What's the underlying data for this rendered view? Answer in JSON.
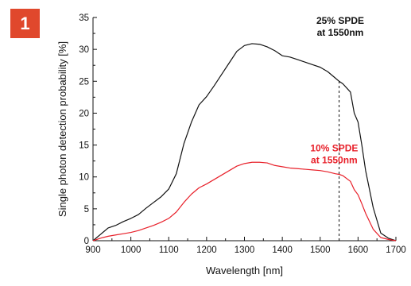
{
  "figure": {
    "badge": "1"
  },
  "chart_data": {
    "type": "line",
    "title": "",
    "xlabel": "Wavelength [nm]",
    "ylabel": "Single photon detection probability [%]",
    "xlim": [
      900,
      1700
    ],
    "ylim": [
      0,
      35
    ],
    "xticks": [
      900,
      1000,
      1100,
      1200,
      1300,
      1400,
      1500,
      1600,
      1700
    ],
    "yticks": [
      0,
      5,
      10,
      15,
      20,
      25,
      30,
      35
    ],
    "grid": false,
    "series": [
      {
        "color": "#111111",
        "x": [
          900,
          920,
          940,
          960,
          980,
          1000,
          1020,
          1040,
          1060,
          1080,
          1100,
          1120,
          1140,
          1160,
          1180,
          1200,
          1220,
          1240,
          1260,
          1280,
          1300,
          1320,
          1340,
          1360,
          1380,
          1400,
          1420,
          1440,
          1460,
          1480,
          1500,
          1520,
          1540,
          1550,
          1560,
          1580,
          1590,
          1600,
          1610,
          1620,
          1640,
          1660,
          1680,
          1700
        ],
        "y": [
          0,
          1.0,
          2.0,
          2.4,
          3.0,
          3.5,
          4.1,
          5.1,
          6.0,
          6.9,
          8.1,
          10.5,
          15.2,
          18.6,
          21.3,
          22.6,
          24.3,
          26.1,
          27.9,
          29.7,
          30.6,
          30.9,
          30.8,
          30.4,
          29.8,
          29.0,
          28.8,
          28.4,
          28.0,
          27.6,
          27.2,
          26.5,
          25.5,
          25.0,
          24.6,
          23.3,
          20.0,
          18.6,
          15.0,
          11.0,
          5.2,
          1.2,
          0.4,
          0
        ]
      },
      {
        "color": "#e8202a",
        "x": [
          900,
          920,
          940,
          960,
          980,
          1000,
          1020,
          1040,
          1060,
          1080,
          1100,
          1120,
          1140,
          1160,
          1180,
          1200,
          1220,
          1240,
          1260,
          1280,
          1300,
          1320,
          1340,
          1360,
          1380,
          1400,
          1420,
          1440,
          1460,
          1480,
          1500,
          1520,
          1540,
          1550,
          1560,
          1580,
          1590,
          1600,
          1610,
          1620,
          1640,
          1660,
          1680,
          1700
        ],
        "y": [
          0,
          0.4,
          0.7,
          0.9,
          1.1,
          1.3,
          1.6,
          2.0,
          2.4,
          2.9,
          3.5,
          4.5,
          6.0,
          7.3,
          8.3,
          8.9,
          9.6,
          10.3,
          11.0,
          11.7,
          12.1,
          12.3,
          12.3,
          12.2,
          11.8,
          11.6,
          11.4,
          11.3,
          11.2,
          11.1,
          11.0,
          10.8,
          10.5,
          10.4,
          10.2,
          9.3,
          8.0,
          7.2,
          5.8,
          4.3,
          1.8,
          0.5,
          0.2,
          0
        ]
      }
    ],
    "reference_line": {
      "x": 1550,
      "y_from": 0,
      "y_to": 25,
      "style": "dashed",
      "color": "#111111"
    },
    "annotations": [
      {
        "lines": [
          "25% SPDE",
          "at 1550nm"
        ],
        "color": "#111111",
        "x": 1553,
        "y": 34
      },
      {
        "lines": [
          "10% SPDE",
          "at 1550nm"
        ],
        "color": "#e8202a",
        "x": 1537,
        "y": 14
      }
    ]
  }
}
